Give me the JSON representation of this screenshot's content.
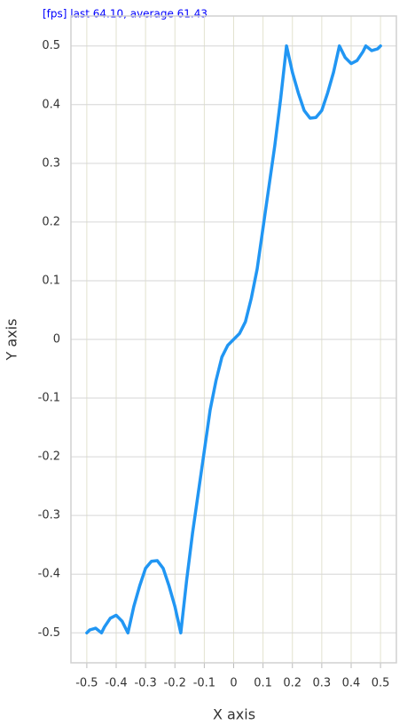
{
  "fps_text": "[fps] last 64.10, average 61.43",
  "chart_data": {
    "type": "line",
    "x_label": "X axis",
    "y_label": "Y axis",
    "x": [
      -0.5,
      -0.49,
      -0.47,
      -0.45,
      -0.44,
      -0.42,
      -0.4,
      -0.38,
      -0.36,
      -0.34,
      -0.32,
      -0.3,
      -0.28,
      -0.26,
      -0.24,
      -0.22,
      -0.2,
      -0.18,
      -0.16,
      -0.14,
      -0.12,
      -0.1,
      -0.08,
      -0.06,
      -0.04,
      -0.02,
      0,
      0.02,
      0.04,
      0.06,
      0.08,
      0.1,
      0.12,
      0.14,
      0.16,
      0.18,
      0.2,
      0.22,
      0.24,
      0.26,
      0.28,
      0.3,
      0.32,
      0.34,
      0.36,
      0.38,
      0.4,
      0.42,
      0.44,
      0.45,
      0.47,
      0.49,
      0.5
    ],
    "values": [
      -0.5,
      -0.495,
      -0.492,
      -0.5,
      -0.49,
      -0.475,
      -0.47,
      -0.48,
      -0.5,
      -0.455,
      -0.42,
      -0.39,
      -0.378,
      -0.377,
      -0.39,
      -0.42,
      -0.455,
      -0.5,
      -0.41,
      -0.33,
      -0.26,
      -0.19,
      -0.12,
      -0.07,
      -0.03,
      -0.01,
      0,
      0.01,
      0.03,
      0.07,
      0.12,
      0.19,
      0.26,
      0.33,
      0.41,
      0.5,
      0.455,
      0.42,
      0.39,
      0.377,
      0.378,
      0.39,
      0.42,
      0.455,
      0.5,
      0.48,
      0.47,
      0.475,
      0.49,
      0.5,
      0.492,
      0.495,
      0.5
    ],
    "color": "#2196f3",
    "xlim": [
      -0.554,
      0.554
    ],
    "ylim": [
      -0.551,
      0.551
    ],
    "xticks": [
      -0.5,
      -0.4,
      -0.3,
      -0.2,
      -0.1,
      0,
      0.1,
      0.2,
      0.3,
      0.4,
      0.5
    ],
    "yticks": [
      -0.5,
      -0.4,
      -0.3,
      -0.2,
      -0.1,
      0,
      0.1,
      0.2,
      0.3,
      0.4,
      0.5
    ],
    "grid": true
  }
}
